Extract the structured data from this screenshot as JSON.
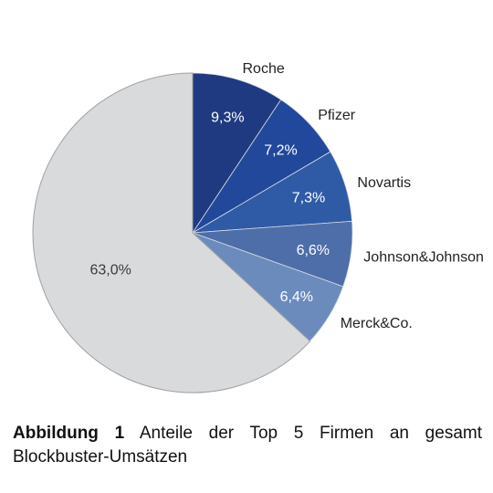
{
  "chart_data": {
    "type": "pie",
    "slices": [
      {
        "name": "Roche",
        "value": 9.3,
        "label": "9,3%",
        "color": "#1f3a80"
      },
      {
        "name": "Pfizer",
        "value": 7.2,
        "label": "7,2%",
        "color": "#21489a"
      },
      {
        "name": "Novartis",
        "value": 7.3,
        "label": "7,3%",
        "color": "#2f5ba6"
      },
      {
        "name": "Johnson&Johnson",
        "value": 6.6,
        "label": "6,6%",
        "color": "#4d6ea8"
      },
      {
        "name": "Merck&Co.",
        "value": 6.4,
        "label": "6,4%",
        "color": "#6b8bbd"
      },
      {
        "name": "",
        "value": 63.0,
        "label": "63,0%",
        "color": "#d9dadc"
      }
    ],
    "start_angle": "12 o'clock",
    "direction": "clockwise"
  },
  "caption": {
    "label": "Abbildung 1",
    "text": "Anteile der Top 5 Firmen an gesamt Blockbuster-Umsätzen"
  }
}
